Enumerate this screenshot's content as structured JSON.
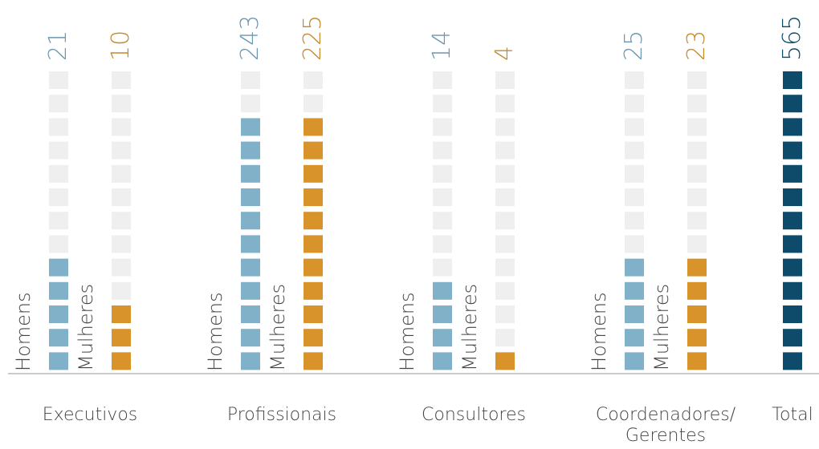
{
  "chart_data": {
    "type": "unit-column",
    "yscale": "log",
    "ylim": [
      3,
      565
    ],
    "categories": [
      "Executivos",
      "Profissionais",
      "Consultores",
      "Coordenadores/ Gerentes"
    ],
    "series": [
      {
        "name": "Homens",
        "color": "#80b1c9",
        "values": [
          21,
          243,
          14,
          25
        ]
      },
      {
        "name": "Mulheres",
        "color": "#d9932b",
        "values": [
          10,
          225,
          4,
          23
        ]
      }
    ],
    "total": {
      "name": "Total",
      "value": 565,
      "color": "#0e4a6a"
    }
  }
}
